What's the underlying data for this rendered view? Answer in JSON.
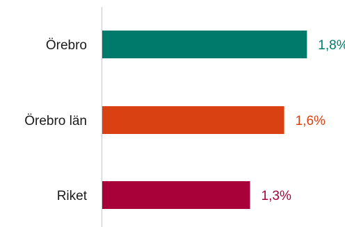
{
  "chart_data": {
    "type": "bar",
    "orientation": "horizontal",
    "categories": [
      "Örebro",
      "Örebro län",
      "Riket"
    ],
    "values": [
      1.8,
      1.6,
      1.3
    ],
    "value_labels": [
      "1,8%",
      "1,6%",
      "1,3%"
    ],
    "colors": [
      "#007a6b",
      "#d94012",
      "#a80038"
    ],
    "xlim": [
      0,
      2.0
    ],
    "title": "",
    "xlabel": "",
    "ylabel": "",
    "grid": false,
    "legend": "none"
  }
}
